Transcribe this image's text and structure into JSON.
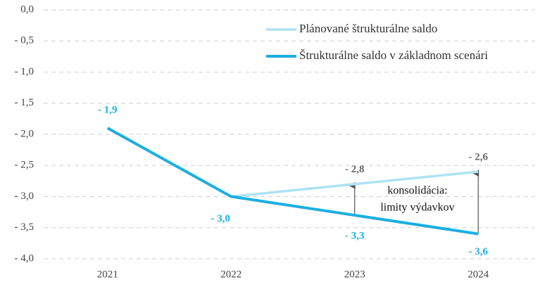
{
  "chart_data": {
    "type": "line",
    "categories": [
      "2021",
      "2022",
      "2023",
      "2024"
    ],
    "series": [
      {
        "name": "Plánované štrukturálne saldo",
        "color": "#aee3f2",
        "values": [
          null,
          -3.0,
          -2.8,
          -2.6
        ],
        "value_labels": [
          null,
          null,
          "- 2,8",
          "- 2,6"
        ],
        "label_color": "#666666"
      },
      {
        "name": "Štrukturálne saldo v základnom scenári",
        "color": "#1aafe0",
        "values": [
          -1.9,
          -3.0,
          -3.3,
          -3.6
        ],
        "value_labels": [
          "- 1,9",
          "- 3,0",
          "- 3,3",
          "- 3,6"
        ],
        "label_color": "#1aafe0"
      }
    ],
    "ylim": [
      -4.0,
      0.0
    ],
    "yticks": [
      {
        "value": 0.0,
        "label": "0,0"
      },
      {
        "value": -0.5,
        "label": "- 0,5"
      },
      {
        "value": -1.0,
        "label": "- 1,0"
      },
      {
        "value": -1.5,
        "label": "- 1,5"
      },
      {
        "value": -2.0,
        "label": "- 2,0"
      },
      {
        "value": -2.5,
        "label": "- 2,5"
      },
      {
        "value": -3.0,
        "label": "- 3,0"
      },
      {
        "value": -3.5,
        "label": "- 3,5"
      },
      {
        "value": -4.0,
        "label": "- 4,0"
      }
    ],
    "grid": true,
    "legend": "top-right",
    "annotation": [
      "konsolidácia:",
      "limity výdavkov"
    ]
  }
}
